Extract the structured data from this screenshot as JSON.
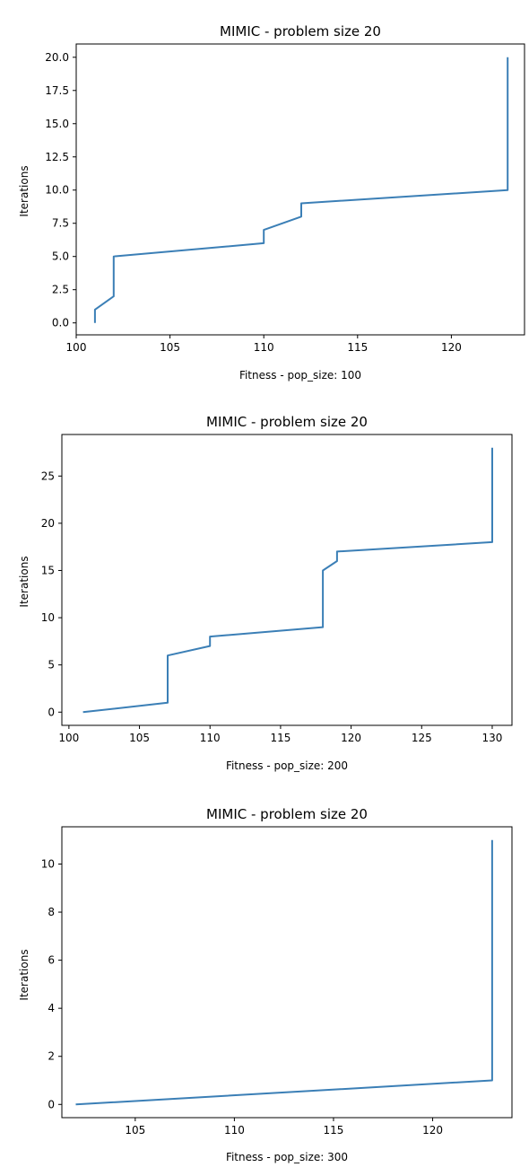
{
  "chart_data": [
    {
      "type": "line",
      "title": "MIMIC - problem size 20",
      "xlabel": "Fitness - pop_size: 100",
      "ylabel": "Iterations",
      "xlim": [
        100.0,
        123.9
      ],
      "ylim": [
        -0.9,
        21.0
      ],
      "xticks": [
        100,
        105,
        110,
        115,
        120
      ],
      "xtick_labels": [
        "100",
        "105",
        "110",
        "115",
        "120"
      ],
      "yticks": [
        0.0,
        2.5,
        5.0,
        7.5,
        10.0,
        12.5,
        15.0,
        17.5,
        20.0
      ],
      "ytick_labels": [
        "0.0",
        "2.5",
        "5.0",
        "7.5",
        "10.0",
        "12.5",
        "15.0",
        "17.5",
        "20.0"
      ],
      "grid": false,
      "series": [
        {
          "color": "#3b7fb6",
          "x": [
            101,
            101,
            102,
            102,
            110,
            110,
            112,
            112,
            123,
            123,
            123,
            123,
            123,
            123,
            123,
            123,
            123,
            123,
            123
          ],
          "y": [
            0,
            1,
            2,
            5,
            6,
            7,
            8,
            9,
            10,
            11,
            12,
            13,
            14,
            15,
            16,
            17,
            18,
            19,
            20
          ]
        }
      ]
    },
    {
      "type": "line",
      "title": "MIMIC - problem size 20",
      "xlabel": "Fitness - pop_size: 200",
      "ylabel": "Iterations",
      "xlim": [
        99.5,
        131.4
      ],
      "ylim": [
        -1.4,
        29.4
      ],
      "xticks": [
        100,
        105,
        110,
        115,
        120,
        125,
        130
      ],
      "xtick_labels": [
        "100",
        "105",
        "110",
        "115",
        "120",
        "125",
        "130"
      ],
      "yticks": [
        0,
        5,
        10,
        15,
        20,
        25
      ],
      "ytick_labels": [
        "0",
        "5",
        "10",
        "15",
        "20",
        "25"
      ],
      "grid": false,
      "series": [
        {
          "color": "#3b7fb6",
          "x": [
            101,
            107,
            107,
            107,
            107,
            107,
            107,
            110,
            110,
            118,
            118,
            118,
            118,
            118,
            118,
            118,
            119,
            119,
            130,
            130,
            130,
            130,
            130,
            130,
            130,
            130,
            130,
            130,
            130
          ],
          "y": [
            0,
            1,
            2,
            3,
            4,
            5,
            6,
            7,
            8,
            9,
            10,
            11,
            12,
            13,
            14,
            15,
            16,
            17,
            18,
            19,
            20,
            21,
            22,
            23,
            24,
            25,
            26,
            27,
            28
          ]
        }
      ]
    },
    {
      "type": "line",
      "title": "MIMIC - problem size 20",
      "xlabel": "Fitness - pop_size: 300",
      "ylabel": "Iterations",
      "xlim": [
        101.3,
        124.0
      ],
      "ylim": [
        -0.55,
        11.55
      ],
      "xticks": [
        105,
        110,
        115,
        120
      ],
      "xtick_labels": [
        "105",
        "110",
        "115",
        "120"
      ],
      "yticks": [
        0,
        2,
        4,
        6,
        8,
        10
      ],
      "ytick_labels": [
        "0",
        "2",
        "4",
        "6",
        "8",
        "10"
      ],
      "grid": false,
      "series": [
        {
          "color": "#3b7fb6",
          "x": [
            102,
            123,
            123,
            123,
            123,
            123,
            123,
            123,
            123,
            123,
            123,
            123
          ],
          "y": [
            0,
            1,
            2,
            3,
            4,
            5,
            6,
            7,
            8,
            9,
            10,
            11
          ]
        }
      ]
    }
  ]
}
